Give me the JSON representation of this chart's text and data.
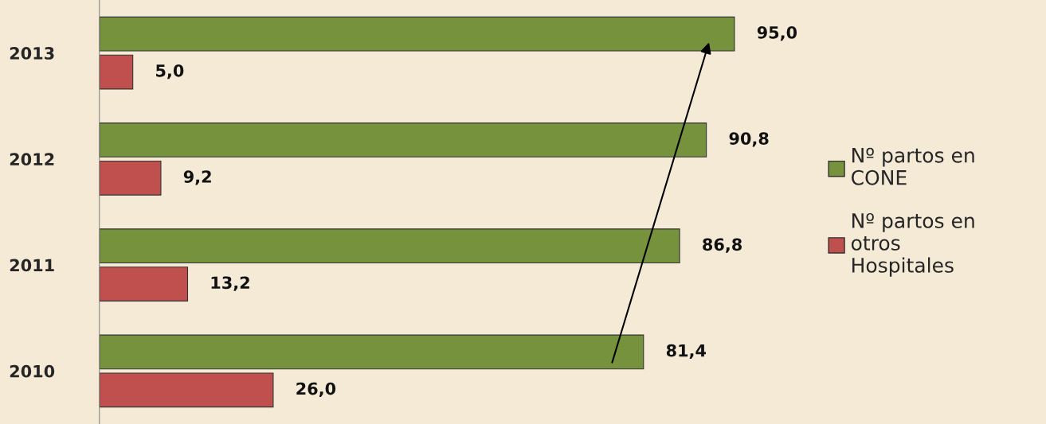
{
  "chart_data": {
    "type": "bar",
    "orientation": "horizontal",
    "categories": [
      "2013",
      "2012",
      "2011",
      "2010"
    ],
    "series": [
      {
        "name": "Nº partos en CONE",
        "color": "#76923c",
        "values": [
          95.0,
          90.8,
          86.8,
          81.4
        ],
        "value_labels": [
          "95,0",
          "90,8",
          "86,8",
          "81,4"
        ]
      },
      {
        "name": "Nº partos en otros Hospitales",
        "color": "#c0504d",
        "values": [
          5.0,
          9.2,
          13.2,
          26.0
        ],
        "value_labels": [
          "5,0",
          "9,2",
          "13,2",
          "26,0"
        ]
      }
    ],
    "legend": "right",
    "grid": false,
    "tick_labels": "y"
  }
}
